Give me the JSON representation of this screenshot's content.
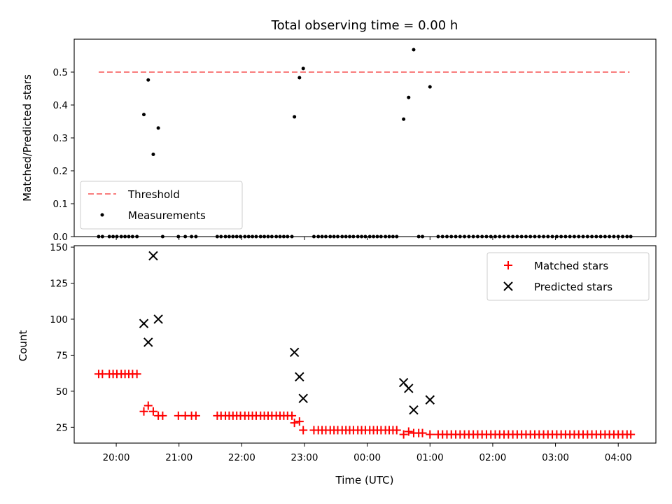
{
  "chart_data": [
    {
      "type": "scatter",
      "title": "Total observing time = 0.00 h",
      "xlabel": "",
      "ylabel": "Matched/Predicted stars",
      "ylim": [
        0,
        0.6
      ],
      "yticks": [
        "0.0",
        "0.1",
        "0.2",
        "0.3",
        "0.4",
        "0.5"
      ],
      "ytick_values": [
        0,
        0.1,
        0.2,
        0.3,
        0.4,
        0.5
      ],
      "xlim_hours": [
        19.33,
        28.6
      ],
      "legend": {
        "placement": "lower-left",
        "entries": [
          "Threshold",
          "Measurements"
        ]
      },
      "threshold": {
        "name": "Threshold",
        "value": 0.5,
        "x_start": 19.72,
        "x_end": 28.18,
        "color": "#f87d7d"
      },
      "measurements": {
        "name": "Measurements",
        "color": "#000000",
        "x": [
          19.72,
          19.78,
          19.89,
          19.95,
          20.01,
          20.08,
          20.14,
          20.2,
          20.26,
          20.33,
          20.44,
          20.51,
          20.59,
          20.67,
          20.74,
          20.99,
          21.1,
          21.2,
          21.27,
          21.61,
          21.67,
          21.74,
          21.8,
          21.86,
          21.92,
          21.98,
          22.05,
          22.11,
          22.17,
          22.23,
          22.3,
          22.36,
          22.42,
          22.48,
          22.55,
          22.61,
          22.67,
          22.73,
          22.8,
          22.84,
          22.92,
          22.98,
          23.15,
          23.22,
          23.28,
          23.34,
          23.41,
          23.47,
          23.53,
          23.6,
          23.66,
          23.72,
          23.78,
          23.85,
          23.91,
          23.97,
          24.04,
          24.1,
          24.16,
          24.22,
          24.29,
          24.35,
          24.41,
          24.47,
          24.58,
          24.66,
          24.74,
          24.82,
          24.88,
          25.0,
          25.13,
          25.2,
          25.27,
          25.34,
          25.41,
          25.48,
          25.55,
          25.62,
          25.69,
          25.76,
          25.83,
          25.9,
          25.97,
          26.04,
          26.11,
          26.18,
          26.25,
          26.32,
          26.39,
          26.46,
          26.53,
          26.6,
          26.67,
          26.74,
          26.81,
          26.88,
          26.95,
          27.02,
          27.09,
          27.16,
          27.23,
          27.3,
          27.37,
          27.44,
          27.51,
          27.58,
          27.65,
          27.72,
          27.79,
          27.86,
          27.93,
          28.0,
          28.07,
          28.14,
          28.2
        ],
        "y": [
          0,
          0,
          0,
          0,
          0,
          0,
          0,
          0,
          0,
          0,
          0.371,
          0.476,
          0.25,
          0.33,
          0,
          0,
          0,
          0,
          0,
          0,
          0,
          0,
          0,
          0,
          0,
          0,
          0,
          0,
          0,
          0,
          0,
          0,
          0,
          0,
          0,
          0,
          0,
          0,
          0,
          0.364,
          0.483,
          0.511,
          0,
          0,
          0,
          0,
          0,
          0,
          0,
          0,
          0,
          0,
          0,
          0,
          0,
          0,
          0,
          0,
          0,
          0,
          0,
          0,
          0,
          0,
          0.357,
          0.423,
          0.568,
          0,
          0,
          0.455,
          0,
          0,
          0,
          0,
          0,
          0,
          0,
          0,
          0,
          0,
          0,
          0,
          0,
          0,
          0,
          0,
          0,
          0,
          0,
          0,
          0,
          0,
          0,
          0,
          0,
          0,
          0,
          0,
          0,
          0,
          0,
          0,
          0,
          0,
          0,
          0,
          0,
          0,
          0,
          0,
          0,
          0,
          0,
          0,
          0
        ]
      }
    },
    {
      "type": "scatter",
      "title": "",
      "xlabel": "Time (UTC)",
      "ylabel": "Count",
      "ylim": [
        14,
        151
      ],
      "yticks": [
        "25",
        "50",
        "75",
        "100",
        "125",
        "150"
      ],
      "ytick_values": [
        25,
        50,
        75,
        100,
        125,
        150
      ],
      "xlim_hours": [
        19.33,
        28.6
      ],
      "xticks": [
        "20:00",
        "21:00",
        "22:00",
        "23:00",
        "00:00",
        "01:00",
        "02:00",
        "03:00",
        "04:00"
      ],
      "xtick_hours": [
        20,
        21,
        22,
        23,
        24,
        25,
        26,
        27,
        28
      ],
      "legend": {
        "placement": "upper-right",
        "entries": [
          "Matched stars",
          "Predicted stars"
        ]
      },
      "series": [
        {
          "name": "Matched stars",
          "marker": "+",
          "color": "#ff0000",
          "x": [
            19.72,
            19.78,
            19.89,
            19.95,
            20.01,
            20.08,
            20.14,
            20.2,
            20.26,
            20.33,
            20.44,
            20.51,
            20.59,
            20.67,
            20.74,
            20.99,
            21.1,
            21.2,
            21.27,
            21.61,
            21.67,
            21.74,
            21.8,
            21.86,
            21.92,
            21.98,
            22.05,
            22.11,
            22.17,
            22.23,
            22.3,
            22.36,
            22.42,
            22.48,
            22.55,
            22.61,
            22.67,
            22.73,
            22.8,
            22.84,
            22.92,
            22.98,
            23.15,
            23.22,
            23.28,
            23.34,
            23.41,
            23.47,
            23.53,
            23.6,
            23.66,
            23.72,
            23.78,
            23.85,
            23.91,
            23.97,
            24.04,
            24.1,
            24.16,
            24.22,
            24.29,
            24.35,
            24.41,
            24.47,
            24.58,
            24.66,
            24.74,
            24.82,
            24.88,
            25.0,
            25.13,
            25.2,
            25.27,
            25.34,
            25.41,
            25.48,
            25.55,
            25.62,
            25.69,
            25.76,
            25.83,
            25.9,
            25.97,
            26.04,
            26.11,
            26.18,
            26.25,
            26.32,
            26.39,
            26.46,
            26.53,
            26.6,
            26.67,
            26.74,
            26.81,
            26.88,
            26.95,
            27.02,
            27.09,
            27.16,
            27.23,
            27.3,
            27.37,
            27.44,
            27.51,
            27.58,
            27.65,
            27.72,
            27.79,
            27.86,
            27.93,
            28.0,
            28.07,
            28.14,
            28.2
          ],
          "y": [
            62,
            62,
            62,
            62,
            62,
            62,
            62,
            62,
            62,
            62,
            36,
            40,
            36,
            33,
            33,
            33,
            33,
            33,
            33,
            33,
            33,
            33,
            33,
            33,
            33,
            33,
            33,
            33,
            33,
            33,
            33,
            33,
            33,
            33,
            33,
            33,
            33,
            33,
            33,
            28,
            29,
            23,
            23,
            23,
            23,
            23,
            23,
            23,
            23,
            23,
            23,
            23,
            23,
            23,
            23,
            23,
            23,
            23,
            23,
            23,
            23,
            23,
            23,
            23,
            20,
            22,
            21,
            21,
            21,
            20,
            20,
            20,
            20,
            20,
            20,
            20,
            20,
            20,
            20,
            20,
            20,
            20,
            20,
            20,
            20,
            20,
            20,
            20,
            20,
            20,
            20,
            20,
            20,
            20,
            20,
            20,
            20,
            20,
            20,
            20,
            20,
            20,
            20,
            20,
            20,
            20,
            20,
            20,
            20,
            20,
            20,
            20,
            20,
            20,
            20
          ]
        },
        {
          "name": "Predicted stars",
          "marker": "x",
          "color": "#000000",
          "x": [
            20.44,
            20.51,
            20.59,
            20.67,
            22.84,
            22.92,
            22.98,
            24.58,
            24.66,
            24.74,
            25.0
          ],
          "y": [
            97,
            84,
            144,
            100,
            77,
            60,
            45,
            56,
            52,
            37,
            44
          ]
        }
      ]
    }
  ]
}
